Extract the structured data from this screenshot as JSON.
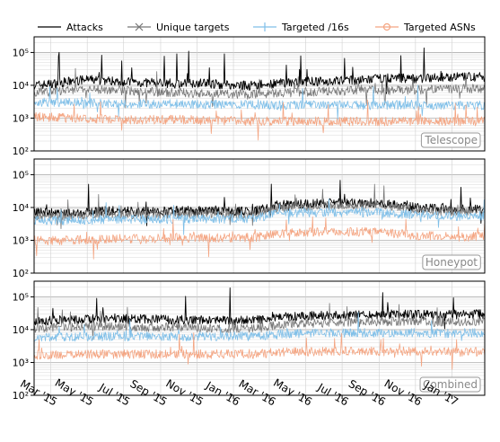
{
  "chart_data": {
    "type": "line",
    "yscale": "log",
    "ylim": [
      100,
      300000
    ],
    "y_ticks": [
      {
        "value": 100,
        "label": "10²"
      },
      {
        "value": 1000,
        "label": "10³"
      },
      {
        "value": 10000,
        "label": "10⁴"
      },
      {
        "value": 100000,
        "label": "10⁵"
      }
    ],
    "xlim": [
      "2015-02-01",
      "2017-02-25"
    ],
    "x_ticks": [
      {
        "date": "2015-03-01",
        "label": "Mar '15"
      },
      {
        "date": "2015-05-01",
        "label": "May '15"
      },
      {
        "date": "2015-07-01",
        "label": "Jul '15"
      },
      {
        "date": "2015-09-01",
        "label": "Sep '15"
      },
      {
        "date": "2015-11-01",
        "label": "Nov '15"
      },
      {
        "date": "2016-01-01",
        "label": "Jan '16"
      },
      {
        "date": "2016-03-01",
        "label": "Mar '16"
      },
      {
        "date": "2016-05-01",
        "label": "May '16"
      },
      {
        "date": "2016-07-01",
        "label": "Jul '16"
      },
      {
        "date": "2016-09-01",
        "label": "Sep '16"
      },
      {
        "date": "2016-11-01",
        "label": "Nov '16"
      },
      {
        "date": "2017-01-01",
        "label": "Jan '17"
      }
    ],
    "grid": true,
    "legend": "top",
    "legend_entries": [
      {
        "name": "Attacks",
        "color": "#000000",
        "marker": "none"
      },
      {
        "name": "Unique targets",
        "color": "#777777",
        "marker": "x"
      },
      {
        "name": "Targeted /16s",
        "color": "#7fbfe8",
        "marker": "+"
      },
      {
        "name": "Targeted ASNs",
        "color": "#f4a582",
        "marker": "o"
      }
    ],
    "panels": [
      {
        "label": "Telescope",
        "series": [
          {
            "name": "Attacks",
            "color": "#000000",
            "x": [
              "2015-02-01",
              "2015-03-01",
              "2015-04-01",
              "2015-05-01",
              "2015-06-01",
              "2015-07-01",
              "2015-08-01",
              "2015-09-01",
              "2015-10-01",
              "2015-11-01",
              "2015-12-01",
              "2016-01-01",
              "2016-02-01",
              "2016-03-01",
              "2016-04-01",
              "2016-05-01",
              "2016-06-01",
              "2016-07-01",
              "2016-08-01",
              "2016-09-01",
              "2016-10-01",
              "2016-11-01",
              "2016-12-01",
              "2017-01-01",
              "2017-02-25"
            ],
            "values": [
              10000,
              11000,
              13000,
              15000,
              14000,
              13000,
              12000,
              12000,
              11000,
              12000,
              11000,
              10000,
              10000,
              11000,
              12000,
              13000,
              13000,
              14000,
              14000,
              16000,
              17000,
              16000,
              17000,
              18000,
              18000
            ]
          },
          {
            "name": "Unique targets",
            "color": "#777777",
            "x": [
              "2015-02-01",
              "2015-04-01",
              "2015-06-01",
              "2015-08-01",
              "2015-10-01",
              "2015-12-01",
              "2016-02-01",
              "2016-04-01",
              "2016-06-01",
              "2016-08-01",
              "2016-10-01",
              "2016-12-01",
              "2017-02-25"
            ],
            "values": [
              6000,
              7000,
              7500,
              6500,
              6000,
              5500,
              5500,
              6000,
              6500,
              7000,
              7000,
              7500,
              8000
            ]
          },
          {
            "name": "Targeted /16s",
            "color": "#7fbfe8",
            "x": [
              "2015-02-01",
              "2015-04-01",
              "2015-06-01",
              "2015-08-01",
              "2015-10-01",
              "2015-12-01",
              "2016-02-01",
              "2016-04-01",
              "2016-06-01",
              "2016-08-01",
              "2016-10-01",
              "2016-12-01",
              "2017-02-25"
            ],
            "values": [
              3000,
              3000,
              2800,
              2700,
              2700,
              2600,
              2500,
              2500,
              2500,
              2500,
              2500,
              2400,
              2500
            ]
          },
          {
            "name": "Targeted ASNs",
            "color": "#f4a582",
            "x": [
              "2015-02-01",
              "2015-04-01",
              "2015-06-01",
              "2015-08-01",
              "2015-10-01",
              "2015-12-01",
              "2016-02-01",
              "2016-04-01",
              "2016-06-01",
              "2016-08-01",
              "2016-10-01",
              "2016-12-01",
              "2017-02-25"
            ],
            "values": [
              1100,
              1000,
              950,
              900,
              900,
              850,
              800,
              800,
              800,
              800,
              800,
              800,
              800
            ]
          }
        ]
      },
      {
        "label": "Honeypot",
        "series": [
          {
            "name": "Attacks",
            "color": "#000000",
            "x": [
              "2015-02-01",
              "2015-04-01",
              "2015-06-01",
              "2015-08-01",
              "2015-10-01",
              "2015-12-01",
              "2016-02-01",
              "2016-03-15",
              "2016-05-01",
              "2016-07-01",
              "2016-09-01",
              "2016-11-01",
              "2017-01-01",
              "2017-02-25"
            ],
            "values": [
              7000,
              6500,
              8000,
              7500,
              8000,
              8000,
              7500,
              12000,
              13000,
              14000,
              14000,
              10000,
              9000,
              9000
            ]
          },
          {
            "name": "Unique targets",
            "color": "#777777",
            "x": [
              "2015-02-01",
              "2015-04-01",
              "2015-06-01",
              "2015-08-01",
              "2015-10-01",
              "2015-12-01",
              "2016-02-01",
              "2016-03-15",
              "2016-05-01",
              "2016-07-01",
              "2016-09-01",
              "2016-11-01",
              "2017-01-01",
              "2017-02-25"
            ],
            "values": [
              5500,
              5500,
              6500,
              6000,
              6500,
              6500,
              6000,
              10000,
              11000,
              12000,
              13000,
              8500,
              7500,
              8000
            ]
          },
          {
            "name": "Targeted /16s",
            "color": "#7fbfe8",
            "x": [
              "2015-02-01",
              "2015-04-01",
              "2015-06-01",
              "2015-08-01",
              "2015-10-01",
              "2015-12-01",
              "2016-02-01",
              "2016-03-15",
              "2016-05-01",
              "2016-07-01",
              "2016-09-01",
              "2016-11-01",
              "2017-01-01",
              "2017-02-25"
            ],
            "values": [
              4000,
              4000,
              4300,
              4300,
              4500,
              4500,
              4500,
              6500,
              7000,
              7000,
              7000,
              6000,
              5500,
              5500
            ]
          },
          {
            "name": "Targeted ASNs",
            "color": "#f4a582",
            "x": [
              "2015-02-01",
              "2015-04-01",
              "2015-06-01",
              "2015-08-01",
              "2015-10-01",
              "2015-12-01",
              "2016-02-01",
              "2016-03-15",
              "2016-05-01",
              "2016-07-01",
              "2016-09-01",
              "2016-11-01",
              "2017-01-01",
              "2017-02-25"
            ],
            "values": [
              1000,
              1000,
              1100,
              1100,
              1200,
              1200,
              1200,
              1600,
              1800,
              1800,
              1800,
              1400,
              1300,
              1300
            ]
          }
        ]
      },
      {
        "label": "Combined",
        "series": [
          {
            "name": "Attacks",
            "color": "#000000",
            "x": [
              "2015-02-01",
              "2015-04-01",
              "2015-06-01",
              "2015-08-01",
              "2015-10-01",
              "2015-12-01",
              "2016-02-01",
              "2016-04-01",
              "2016-06-01",
              "2016-08-01",
              "2016-10-01",
              "2016-12-01",
              "2017-02-25"
            ],
            "values": [
              18000,
              20000,
              22000,
              21000,
              20000,
              19000,
              19000,
              25000,
              27000,
              28000,
              30000,
              28000,
              30000
            ]
          },
          {
            "name": "Unique targets",
            "color": "#777777",
            "x": [
              "2015-02-01",
              "2015-04-01",
              "2015-06-01",
              "2015-08-01",
              "2015-10-01",
              "2015-12-01",
              "2016-02-01",
              "2016-04-01",
              "2016-06-01",
              "2016-08-01",
              "2016-10-01",
              "2016-12-01",
              "2017-02-25"
            ],
            "values": [
              11000,
              12000,
              13000,
              12000,
              12000,
              11000,
              11000,
              15000,
              16000,
              17000,
              18000,
              17000,
              18000
            ]
          },
          {
            "name": "Targeted /16s",
            "color": "#7fbfe8",
            "x": [
              "2015-02-01",
              "2015-04-01",
              "2015-06-01",
              "2015-08-01",
              "2015-10-01",
              "2015-12-01",
              "2016-02-01",
              "2016-04-01",
              "2016-06-01",
              "2016-08-01",
              "2016-10-01",
              "2016-12-01",
              "2017-02-25"
            ],
            "values": [
              6000,
              6000,
              6200,
              6200,
              6300,
              6300,
              6300,
              7500,
              7800,
              8000,
              8000,
              7800,
              8000
            ]
          },
          {
            "name": "Targeted ASNs",
            "color": "#f4a582",
            "x": [
              "2015-02-01",
              "2015-04-01",
              "2015-06-01",
              "2015-08-01",
              "2015-10-01",
              "2015-12-01",
              "2016-02-01",
              "2016-04-01",
              "2016-06-01",
              "2016-08-01",
              "2016-10-01",
              "2016-12-01",
              "2017-02-25"
            ],
            "values": [
              1700,
              1700,
              1800,
              1800,
              1800,
              1800,
              1800,
              2100,
              2200,
              2200,
              2200,
              2100,
              2100
            ]
          }
        ]
      }
    ]
  }
}
